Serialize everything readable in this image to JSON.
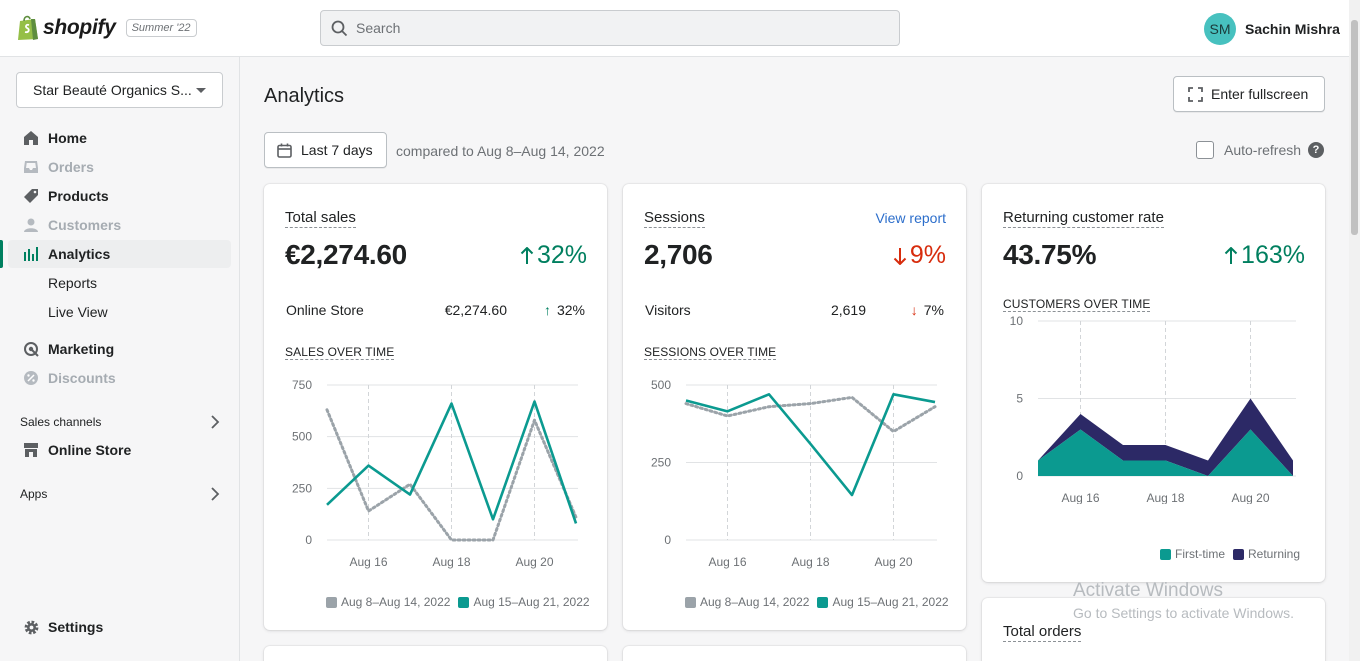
{
  "topbar": {
    "brand": "shopify",
    "edition": "Summer '22",
    "search_placeholder": "Search",
    "user_initials": "SM",
    "user_name": "Sachin Mishra"
  },
  "sidebar": {
    "store_name": "Star Beauté Organics S...",
    "items": [
      {
        "label": "Home",
        "icon": "home-icon",
        "state": "normal"
      },
      {
        "label": "Orders",
        "icon": "orders-icon",
        "state": "muted"
      },
      {
        "label": "Products",
        "icon": "tag-icon",
        "state": "normal"
      },
      {
        "label": "Customers",
        "icon": "person-icon",
        "state": "muted"
      },
      {
        "label": "Analytics",
        "icon": "analytics-icon",
        "state": "active"
      },
      {
        "label": "Marketing",
        "icon": "target-icon",
        "state": "normal"
      },
      {
        "label": "Discounts",
        "icon": "discount-icon",
        "state": "muted"
      }
    ],
    "analytics_sub": [
      "Reports",
      "Live View"
    ],
    "sales_channels_label": "Sales channels",
    "online_store_label": "Online Store",
    "apps_label": "Apps",
    "settings_label": "Settings"
  },
  "main": {
    "title": "Analytics",
    "fullscreen_label": "Enter fullscreen",
    "date_range_label": "Last 7 days",
    "compared_text": "compared to Aug 8–Aug 14, 2022",
    "autorefresh_label": "Auto-refresh"
  },
  "cards": {
    "total_sales": {
      "title": "Total sales",
      "value": "€2,274.60",
      "change": "32%",
      "row_label": "Online Store",
      "row_value": "€2,274.60",
      "row_change": "32%",
      "chart_title": "SALES OVER TIME",
      "legend_prev": "Aug 8–Aug 14, 2022",
      "legend_curr": "Aug 15–Aug 21, 2022"
    },
    "sessions": {
      "title": "Sessions",
      "link": "View report",
      "value": "2,706",
      "change": "9%",
      "row_label": "Visitors",
      "row_value": "2,619",
      "row_change": "7%",
      "chart_title": "SESSIONS OVER TIME",
      "legend_prev": "Aug 8–Aug 14, 2022",
      "legend_curr": "Aug 15–Aug 21, 2022"
    },
    "returning": {
      "title": "Returning customer rate",
      "value": "43.75%",
      "change": "163%",
      "chart_title": "CUSTOMERS OVER TIME",
      "legend_first": "First-time",
      "legend_returning": "Returning"
    },
    "total_orders": {
      "title": "Total orders"
    }
  },
  "colors": {
    "current": "#0b9a90",
    "previous": "#9ba3a9",
    "returning": "#2c2966",
    "first_time": "#0b9a90",
    "up": "#007f5f",
    "down": "#d72c0d"
  },
  "watermark": {
    "line1": "Activate Windows",
    "line2": "Go to Settings to activate Windows."
  },
  "chart_data": [
    {
      "type": "line",
      "title": "SALES OVER TIME",
      "x": [
        "Aug 15",
        "Aug 16",
        "Aug 17",
        "Aug 18",
        "Aug 19",
        "Aug 20",
        "Aug 21"
      ],
      "x_ticks": [
        "Aug 16",
        "Aug 18",
        "Aug 20"
      ],
      "y_ticks": [
        0,
        250,
        500,
        750
      ],
      "ylim": [
        0,
        750
      ],
      "series": [
        {
          "name": "Aug 8–Aug 14, 2022",
          "style": "dotted",
          "values": [
            630,
            140,
            270,
            0,
            0,
            580,
            110
          ]
        },
        {
          "name": "Aug 15–Aug 21, 2022",
          "style": "solid",
          "values": [
            170,
            360,
            220,
            660,
            100,
            670,
            80
          ]
        }
      ]
    },
    {
      "type": "line",
      "title": "SESSIONS OVER TIME",
      "x": [
        "Aug 15",
        "Aug 16",
        "Aug 17",
        "Aug 18",
        "Aug 19",
        "Aug 20",
        "Aug 21"
      ],
      "x_ticks": [
        "Aug 16",
        "Aug 18",
        "Aug 20"
      ],
      "y_ticks": [
        0,
        250,
        500
      ],
      "ylim": [
        0,
        500
      ],
      "series": [
        {
          "name": "Aug 8–Aug 14, 2022",
          "style": "dotted",
          "values": [
            440,
            400,
            430,
            440,
            460,
            350,
            430
          ]
        },
        {
          "name": "Aug 15–Aug 21, 2022",
          "style": "solid",
          "values": [
            450,
            415,
            470,
            310,
            145,
            470,
            445
          ]
        }
      ]
    },
    {
      "type": "area",
      "title": "CUSTOMERS OVER TIME",
      "x": [
        "Aug 15",
        "Aug 16",
        "Aug 17",
        "Aug 18",
        "Aug 19",
        "Aug 20",
        "Aug 21"
      ],
      "x_ticks": [
        "Aug 16",
        "Aug 18",
        "Aug 20"
      ],
      "y_ticks": [
        0,
        5,
        10
      ],
      "ylim": [
        0,
        10
      ],
      "stacked": true,
      "series": [
        {
          "name": "First-time",
          "values": [
            1,
            3,
            1,
            1,
            0,
            3,
            0
          ]
        },
        {
          "name": "Returning",
          "values": [
            0,
            1,
            1,
            1,
            1,
            2,
            1
          ]
        }
      ]
    }
  ]
}
